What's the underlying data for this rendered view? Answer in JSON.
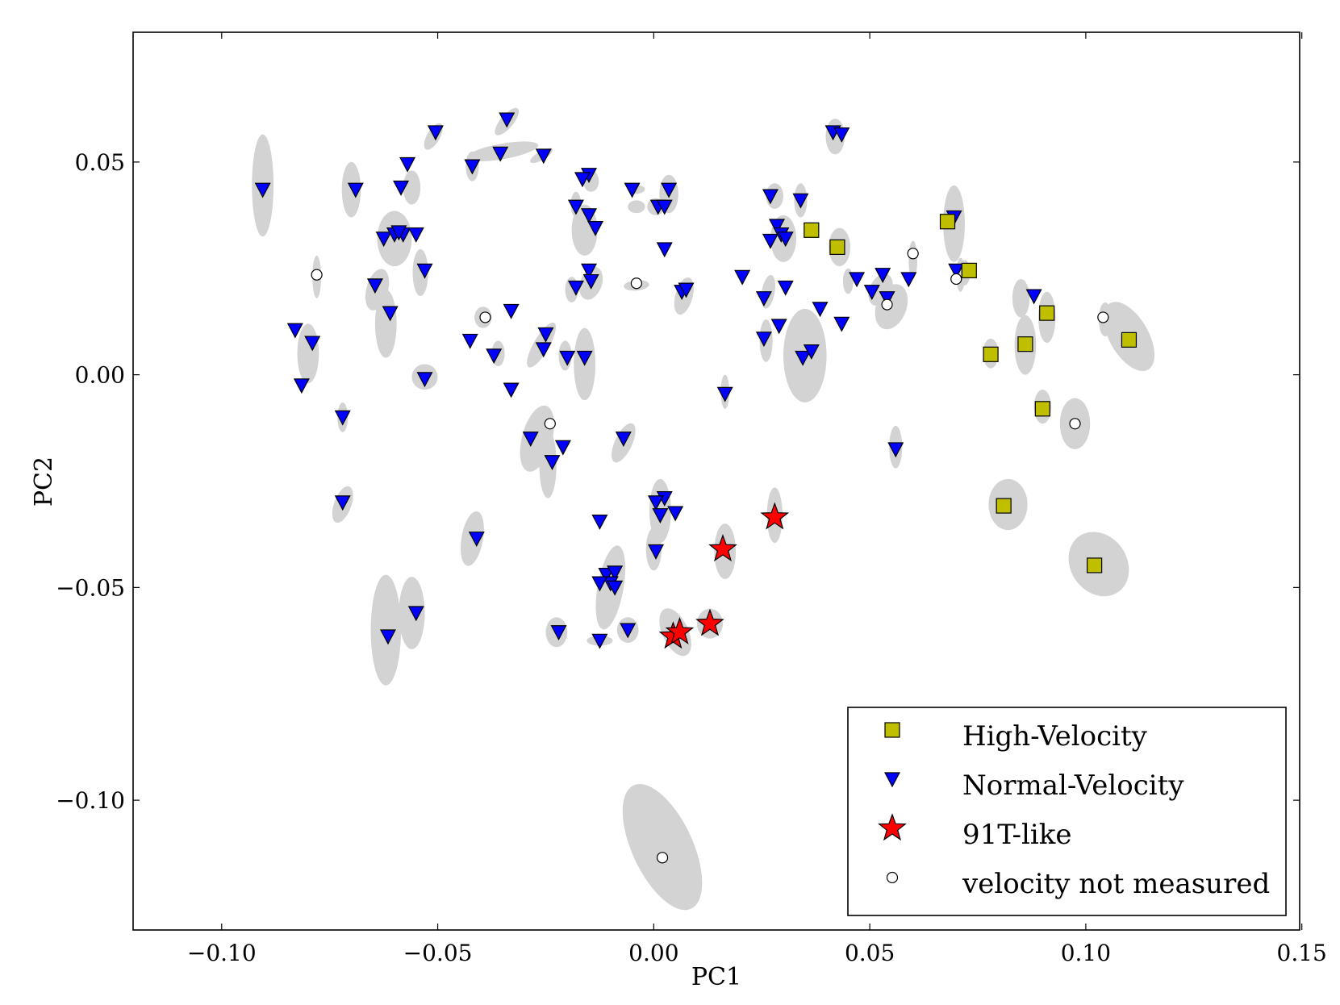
{
  "chart_data": {
    "type": "scatter",
    "title": "",
    "xlabel": "PC1",
    "ylabel": "PC2",
    "xlim": [
      -0.1205,
      0.1495
    ],
    "ylim": [
      -0.1305,
      0.0805
    ],
    "xticks": [
      -0.1,
      -0.05,
      0.0,
      0.05,
      0.1,
      0.15
    ],
    "xtick_labels": [
      "−0.10",
      "−0.05",
      "0.00",
      "0.05",
      "0.10",
      "0.15"
    ],
    "yticks": [
      -0.1,
      -0.05,
      0.0,
      0.05
    ],
    "ytick_labels": [
      "−0.10",
      "−0.05",
      "0.00",
      "0.05"
    ],
    "legend_position": "lower-right",
    "colors": {
      "ellipse": "#d3d3d3",
      "high_velocity": "#bfbf00",
      "normal_velocity": "#0000ff",
      "t91_like": "#ff0000",
      "not_measured": "#ffffff"
    },
    "ellipses": [
      [
        -0.0905,
        0.0445,
        0.0025,
        0.012,
        0
      ],
      [
        -0.07,
        0.0435,
        0.0022,
        0.0065,
        0
      ],
      [
        -0.06,
        0.032,
        0.004,
        0.0065,
        0
      ],
      [
        -0.054,
        0.024,
        0.0018,
        0.0055,
        0
      ],
      [
        -0.064,
        0.02,
        0.0025,
        0.005,
        15
      ],
      [
        -0.062,
        0.012,
        0.0025,
        0.008,
        0
      ],
      [
        -0.08,
        0.005,
        0.0025,
        0.007,
        0
      ],
      [
        -0.078,
        0.023,
        0.001,
        0.005,
        0
      ],
      [
        -0.056,
        0.044,
        0.002,
        0.004,
        0
      ],
      [
        -0.051,
        0.056,
        0.0015,
        0.0035,
        30
      ],
      [
        -0.042,
        0.049,
        0.0015,
        0.0035,
        0
      ],
      [
        -0.035,
        0.0525,
        0.0018,
        0.0085,
        80
      ],
      [
        -0.034,
        0.0595,
        0.0015,
        0.004,
        40
      ],
      [
        -0.026,
        0.0515,
        0.001,
        0.003,
        60
      ],
      [
        -0.016,
        0.034,
        0.003,
        0.006,
        0
      ],
      [
        -0.0145,
        0.0455,
        0.0018,
        0.0025,
        0
      ],
      [
        -0.019,
        0.02,
        0.0015,
        0.003,
        0
      ],
      [
        -0.0145,
        0.0215,
        0.0025,
        0.004,
        20
      ],
      [
        -0.004,
        0.021,
        0.0012,
        0.003,
        85
      ],
      [
        -0.004,
        0.0435,
        0.001,
        0.002,
        85
      ],
      [
        0.0005,
        0.0395,
        0.002,
        0.002,
        0
      ],
      [
        0.0035,
        0.0425,
        0.0022,
        0.0045,
        0
      ],
      [
        0.007,
        0.0185,
        0.002,
        0.0045,
        15
      ],
      [
        -0.0395,
        0.0135,
        0.002,
        0.0025,
        0
      ],
      [
        -0.036,
        0.005,
        0.0015,
        0.003,
        0
      ],
      [
        -0.026,
        0.007,
        0.0018,
        0.006,
        30
      ],
      [
        -0.0205,
        0.0045,
        0.0015,
        0.0035,
        0
      ],
      [
        -0.016,
        0.0025,
        0.0025,
        0.0085,
        0
      ],
      [
        -0.053,
        -0.0005,
        0.003,
        0.003,
        0
      ],
      [
        -0.072,
        -0.01,
        0.0012,
        0.0035,
        0
      ],
      [
        -0.027,
        -0.015,
        0.0035,
        0.008,
        15
      ],
      [
        -0.0245,
        -0.021,
        0.002,
        0.008,
        0
      ],
      [
        -0.007,
        -0.016,
        0.002,
        0.005,
        25
      ],
      [
        0.0015,
        -0.032,
        0.0025,
        0.0075,
        0
      ],
      [
        -0.042,
        -0.0385,
        0.0025,
        0.0065,
        10
      ],
      [
        -0.072,
        -0.0305,
        0.002,
        0.0045,
        20
      ],
      [
        -0.062,
        -0.06,
        0.0035,
        0.013,
        0
      ],
      [
        -0.056,
        -0.056,
        0.003,
        0.0085,
        0
      ],
      [
        -0.01,
        -0.05,
        0.003,
        0.01,
        10
      ],
      [
        0.0,
        -0.041,
        0.0018,
        0.005,
        0
      ],
      [
        -0.0225,
        -0.0605,
        0.0025,
        0.0035,
        0
      ],
      [
        -0.0125,
        -0.0625,
        0.003,
        0.0012,
        0
      ],
      [
        -0.006,
        -0.06,
        0.0025,
        0.003,
        0
      ],
      [
        0.005,
        -0.0605,
        0.003,
        0.006,
        -25
      ],
      [
        0.013,
        -0.0585,
        0.003,
        0.0035,
        0
      ],
      [
        0.0165,
        -0.0415,
        0.0025,
        0.0065,
        0
      ],
      [
        0.028,
        -0.033,
        0.0018,
        0.0065,
        0
      ],
      [
        0.0165,
        -0.004,
        0.001,
        0.004,
        0
      ],
      [
        0.002,
        -0.111,
        0.007,
        0.016,
        -25
      ],
      [
        0.035,
        0.0045,
        0.005,
        0.011,
        0
      ],
      [
        0.026,
        0.008,
        0.0015,
        0.005,
        0
      ],
      [
        0.03,
        0.032,
        0.003,
        0.0055,
        0
      ],
      [
        0.028,
        0.042,
        0.002,
        0.003,
        0
      ],
      [
        0.034,
        0.041,
        0.0015,
        0.004,
        0
      ],
      [
        0.043,
        0.03,
        0.0025,
        0.0045,
        0
      ],
      [
        0.042,
        0.056,
        0.0022,
        0.0042,
        0
      ],
      [
        0.0525,
        0.02,
        0.0025,
        0.004,
        25
      ],
      [
        0.055,
        0.016,
        0.0035,
        0.0055,
        20
      ],
      [
        0.06,
        0.027,
        0.001,
        0.0045,
        0
      ],
      [
        0.0695,
        0.0355,
        0.0025,
        0.009,
        0
      ],
      [
        0.071,
        0.0235,
        0.001,
        0.004,
        0
      ],
      [
        0.072,
        0.024,
        0.0012,
        0.003,
        0
      ],
      [
        0.085,
        0.018,
        0.002,
        0.0045,
        0
      ],
      [
        0.091,
        0.0135,
        0.002,
        0.006,
        0
      ],
      [
        0.086,
        0.007,
        0.0025,
        0.007,
        0
      ],
      [
        0.078,
        0.005,
        0.0018,
        0.0035,
        0
      ],
      [
        0.09,
        -0.0075,
        0.002,
        0.004,
        0
      ],
      [
        0.0975,
        -0.0115,
        0.0035,
        0.006,
        0
      ],
      [
        0.082,
        -0.0305,
        0.0045,
        0.006,
        0
      ],
      [
        0.103,
        -0.0445,
        0.0065,
        0.008,
        -35
      ],
      [
        0.11,
        0.009,
        0.0045,
        0.009,
        -30
      ],
      [
        0.1045,
        0.013,
        0.0015,
        0.004,
        0
      ],
      [
        0.056,
        -0.017,
        0.0015,
        0.005,
        0
      ],
      [
        0.045,
        0.022,
        0.0012,
        0.003,
        0
      ],
      [
        0.0265,
        0.0195,
        0.0015,
        0.004,
        10
      ],
      [
        -0.004,
        0.0395,
        0.002,
        0.0015,
        0
      ],
      [
        -0.018,
        0.04,
        0.0012,
        0.003,
        0
      ],
      [
        -0.0605,
        0.034,
        0.0015,
        0.003,
        0
      ]
    ],
    "series": [
      {
        "name": "High-Velocity",
        "marker": "square",
        "x": [
          0.0365,
          0.0425,
          0.068,
          0.073,
          0.091,
          0.078,
          0.086,
          0.11,
          0.09,
          0.081,
          0.102
        ],
        "y": [
          0.034,
          0.03,
          0.036,
          0.0245,
          0.0145,
          0.0048,
          0.0072,
          0.0082,
          -0.008,
          -0.0308,
          -0.0448
        ]
      },
      {
        "name": "Normal-Velocity",
        "marker": "triangle-down",
        "x": [
          -0.0905,
          -0.069,
          -0.057,
          -0.0505,
          -0.042,
          -0.0355,
          -0.034,
          -0.0255,
          -0.058,
          -0.0625,
          -0.06,
          -0.059,
          -0.055,
          -0.0585,
          -0.053,
          -0.0645,
          -0.061,
          -0.083,
          -0.079,
          -0.0815,
          -0.072,
          -0.053,
          -0.0425,
          -0.037,
          -0.033,
          -0.025,
          -0.0255,
          -0.02,
          -0.016,
          -0.033,
          -0.0285,
          -0.0235,
          -0.021,
          -0.018,
          -0.015,
          -0.0145,
          -0.015,
          -0.0165,
          -0.018,
          -0.015,
          -0.0135,
          -0.005,
          0.001,
          0.0025,
          0.0035,
          0.0025,
          0.0065,
          0.0075,
          0.0165,
          -0.007,
          0.0025,
          0.0005,
          0.0015,
          0.005,
          0.0005,
          -0.0125,
          -0.011,
          -0.009,
          -0.01,
          -0.0125,
          -0.009,
          -0.022,
          -0.0125,
          -0.006,
          -0.041,
          -0.072,
          -0.0615,
          -0.055,
          0.027,
          0.034,
          0.0285,
          0.0295,
          0.0305,
          0.027,
          0.0205,
          0.0255,
          0.0305,
          0.029,
          0.0385,
          0.0255,
          0.0345,
          0.0365,
          0.0435,
          0.0415,
          0.0435,
          0.047,
          0.0505,
          0.053,
          0.054,
          0.059,
          0.07,
          0.0695,
          0.088,
          0.056
        ],
        "y": [
          0.0435,
          0.0435,
          0.0495,
          0.057,
          0.049,
          0.052,
          0.06,
          0.0515,
          0.033,
          0.032,
          0.033,
          0.0335,
          0.033,
          0.044,
          0.0245,
          0.021,
          0.0145,
          0.0105,
          0.0075,
          -0.0025,
          -0.01,
          -0.001,
          0.008,
          0.0045,
          0.015,
          0.0095,
          0.006,
          0.004,
          0.004,
          -0.0035,
          -0.015,
          -0.0205,
          -0.017,
          0.0205,
          0.0245,
          0.022,
          0.047,
          0.046,
          0.0395,
          0.0375,
          0.0345,
          0.0435,
          0.0395,
          0.0395,
          0.0435,
          0.0295,
          0.0195,
          0.02,
          -0.0045,
          -0.015,
          -0.029,
          -0.03,
          -0.033,
          -0.0325,
          -0.0415,
          -0.0345,
          -0.047,
          -0.0465,
          -0.049,
          -0.049,
          -0.05,
          -0.0605,
          -0.0625,
          -0.06,
          -0.0385,
          -0.03,
          -0.0615,
          -0.056,
          0.042,
          0.041,
          0.035,
          0.033,
          0.032,
          0.0315,
          0.023,
          0.018,
          0.0205,
          0.0115,
          0.0155,
          0.0085,
          0.004,
          0.0055,
          0.012,
          0.057,
          0.0565,
          0.0225,
          0.0195,
          0.0235,
          0.018,
          0.0225,
          0.0245,
          0.037,
          0.0185,
          -0.0175
        ]
      },
      {
        "name": "91T-like",
        "marker": "star",
        "x": [
          0.028,
          0.016,
          0.013,
          0.0045,
          0.006
        ],
        "y": [
          -0.0335,
          -0.041,
          -0.0585,
          -0.0615,
          -0.0605
        ]
      },
      {
        "name": "velocity not measured",
        "marker": "circle",
        "x": [
          -0.078,
          -0.039,
          -0.004,
          -0.024,
          0.002,
          0.054,
          0.06,
          0.07,
          0.0975,
          0.104
        ],
        "y": [
          0.0235,
          0.0135,
          0.0215,
          -0.0115,
          -0.1135,
          0.0165,
          0.0285,
          0.0225,
          -0.0115,
          0.0135
        ]
      }
    ],
    "legend": [
      {
        "label": "High-Velocity",
        "marker": "square"
      },
      {
        "label": "Normal-Velocity",
        "marker": "triangle-down"
      },
      {
        "label": "91T-like",
        "marker": "star"
      },
      {
        "label": "velocity not measured",
        "marker": "circle"
      }
    ]
  }
}
